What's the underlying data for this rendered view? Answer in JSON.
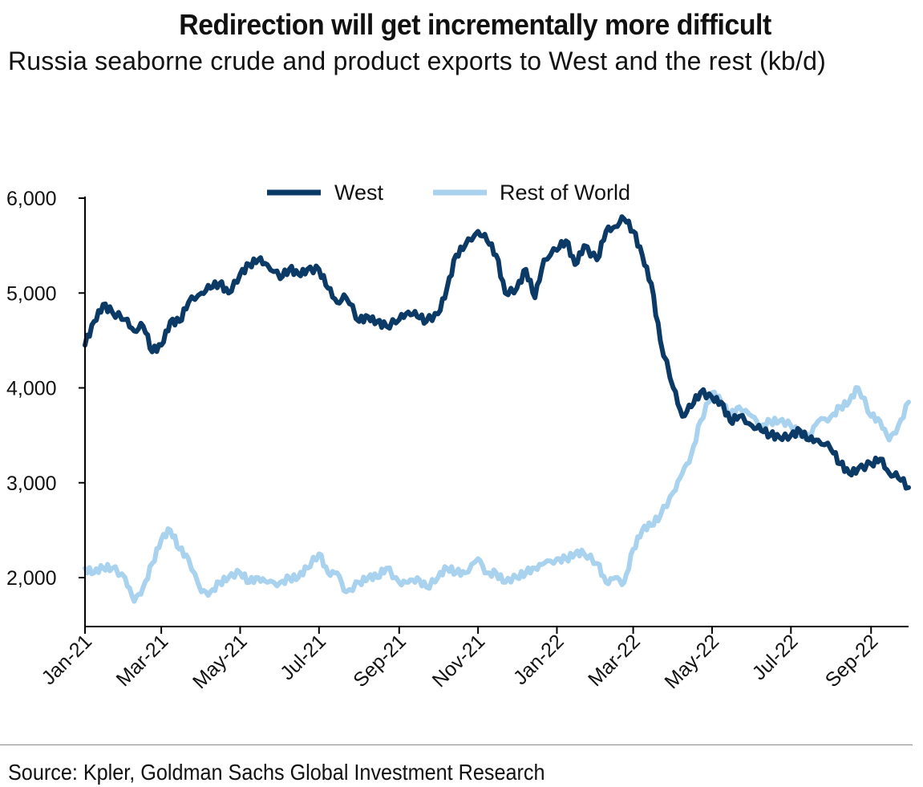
{
  "title": "Redirection will get incrementally more difficult",
  "subtitle": "Russia seaborne crude and product exports to West and the rest (kb/d)",
  "source": "Source: Kpler, Goldman Sachs Global Investment Research",
  "colors": {
    "west": "#0b3a66",
    "rest": "#a9d2ee",
    "axis": "#000000"
  },
  "chart_data": {
    "type": "line",
    "grid": false,
    "legend_position": "top",
    "ylim": [
      1500,
      6000
    ],
    "yticks": [
      2000,
      3000,
      4000,
      5000,
      6000
    ],
    "ytick_labels": [
      "2,000",
      "3,000",
      "4,000",
      "5,000",
      "6,000"
    ],
    "xlim": [
      "2021-01-01",
      "2022-09-30"
    ],
    "xticks": [
      "2021-01-01",
      "2021-03-01",
      "2021-05-01",
      "2021-07-01",
      "2021-09-01",
      "2021-11-01",
      "2022-01-01",
      "2022-03-01",
      "2022-05-01",
      "2022-07-01",
      "2022-09-01"
    ],
    "xtick_labels": [
      "Jan-21",
      "Mar-21",
      "May-21",
      "Jul-21",
      "Sep-21",
      "Nov-21",
      "Jan-22",
      "Mar-22",
      "May-22",
      "Jul-22",
      "Sep-22"
    ],
    "series": [
      {
        "name": "West",
        "points": [
          [
            "2021-01-01",
            4450
          ],
          [
            "2021-01-08",
            4700
          ],
          [
            "2021-01-15",
            4880
          ],
          [
            "2021-01-22",
            4800
          ],
          [
            "2021-02-01",
            4720
          ],
          [
            "2021-02-08",
            4600
          ],
          [
            "2021-02-15",
            4650
          ],
          [
            "2021-02-22",
            4380
          ],
          [
            "2021-03-01",
            4450
          ],
          [
            "2021-03-08",
            4700
          ],
          [
            "2021-03-15",
            4700
          ],
          [
            "2021-03-22",
            4900
          ],
          [
            "2021-04-01",
            5000
          ],
          [
            "2021-04-08",
            5050
          ],
          [
            "2021-04-15",
            5100
          ],
          [
            "2021-04-22",
            5000
          ],
          [
            "2021-05-01",
            5200
          ],
          [
            "2021-05-08",
            5300
          ],
          [
            "2021-05-15",
            5350
          ],
          [
            "2021-05-22",
            5300
          ],
          [
            "2021-06-01",
            5150
          ],
          [
            "2021-06-08",
            5250
          ],
          [
            "2021-06-15",
            5200
          ],
          [
            "2021-06-22",
            5250
          ],
          [
            "2021-07-01",
            5250
          ],
          [
            "2021-07-08",
            5050
          ],
          [
            "2021-07-15",
            4900
          ],
          [
            "2021-07-22",
            4950
          ],
          [
            "2021-08-01",
            4700
          ],
          [
            "2021-08-08",
            4750
          ],
          [
            "2021-08-15",
            4700
          ],
          [
            "2021-08-22",
            4650
          ],
          [
            "2021-09-01",
            4720
          ],
          [
            "2021-09-08",
            4800
          ],
          [
            "2021-09-15",
            4750
          ],
          [
            "2021-09-22",
            4700
          ],
          [
            "2021-10-01",
            4780
          ],
          [
            "2021-10-08",
            5050
          ],
          [
            "2021-10-15",
            5400
          ],
          [
            "2021-10-22",
            5500
          ],
          [
            "2021-11-01",
            5650
          ],
          [
            "2021-11-08",
            5550
          ],
          [
            "2021-11-15",
            5400
          ],
          [
            "2021-11-22",
            5000
          ],
          [
            "2021-12-01",
            5050
          ],
          [
            "2021-12-08",
            5250
          ],
          [
            "2021-12-15",
            4950
          ],
          [
            "2021-12-22",
            5350
          ],
          [
            "2022-01-01",
            5450
          ],
          [
            "2022-01-08",
            5550
          ],
          [
            "2022-01-15",
            5300
          ],
          [
            "2022-01-22",
            5500
          ],
          [
            "2022-02-01",
            5350
          ],
          [
            "2022-02-08",
            5650
          ],
          [
            "2022-02-15",
            5700
          ],
          [
            "2022-02-22",
            5780
          ],
          [
            "2022-03-01",
            5650
          ],
          [
            "2022-03-08",
            5400
          ],
          [
            "2022-03-15",
            5100
          ],
          [
            "2022-03-22",
            4500
          ],
          [
            "2022-04-01",
            4000
          ],
          [
            "2022-04-08",
            3700
          ],
          [
            "2022-04-15",
            3800
          ],
          [
            "2022-04-22",
            3950
          ],
          [
            "2022-05-01",
            3900
          ],
          [
            "2022-05-08",
            3850
          ],
          [
            "2022-05-15",
            3650
          ],
          [
            "2022-05-22",
            3700
          ],
          [
            "2022-06-01",
            3600
          ],
          [
            "2022-06-08",
            3550
          ],
          [
            "2022-06-15",
            3500
          ],
          [
            "2022-06-22",
            3480
          ],
          [
            "2022-07-01",
            3500
          ],
          [
            "2022-07-08",
            3550
          ],
          [
            "2022-07-15",
            3450
          ],
          [
            "2022-07-22",
            3450
          ],
          [
            "2022-08-01",
            3350
          ],
          [
            "2022-08-08",
            3200
          ],
          [
            "2022-08-15",
            3100
          ],
          [
            "2022-08-22",
            3150
          ],
          [
            "2022-09-01",
            3200
          ],
          [
            "2022-09-08",
            3250
          ],
          [
            "2022-09-15",
            3100
          ],
          [
            "2022-09-22",
            3050
          ],
          [
            "2022-09-30",
            2950
          ]
        ]
      },
      {
        "name": "Rest of World",
        "points": [
          [
            "2021-01-01",
            2100
          ],
          [
            "2021-01-08",
            2050
          ],
          [
            "2021-01-15",
            2100
          ],
          [
            "2021-01-22",
            2100
          ],
          [
            "2021-02-01",
            2000
          ],
          [
            "2021-02-08",
            1750
          ],
          [
            "2021-02-15",
            1900
          ],
          [
            "2021-02-22",
            2150
          ],
          [
            "2021-03-01",
            2400
          ],
          [
            "2021-03-08",
            2500
          ],
          [
            "2021-03-15",
            2300
          ],
          [
            "2021-03-22",
            2200
          ],
          [
            "2021-04-01",
            1850
          ],
          [
            "2021-04-08",
            1850
          ],
          [
            "2021-04-15",
            1950
          ],
          [
            "2021-04-22",
            2000
          ],
          [
            "2021-05-01",
            2050
          ],
          [
            "2021-05-08",
            1950
          ],
          [
            "2021-05-15",
            2000
          ],
          [
            "2021-05-22",
            1950
          ],
          [
            "2021-06-01",
            1950
          ],
          [
            "2021-06-08",
            2000
          ],
          [
            "2021-06-15",
            2000
          ],
          [
            "2021-06-22",
            2100
          ],
          [
            "2021-07-01",
            2250
          ],
          [
            "2021-07-08",
            2050
          ],
          [
            "2021-07-15",
            2050
          ],
          [
            "2021-07-22",
            1850
          ],
          [
            "2021-08-01",
            1950
          ],
          [
            "2021-08-08",
            2000
          ],
          [
            "2021-08-15",
            2000
          ],
          [
            "2021-08-22",
            2100
          ],
          [
            "2021-09-01",
            1950
          ],
          [
            "2021-09-08",
            1950
          ],
          [
            "2021-09-15",
            2000
          ],
          [
            "2021-09-22",
            1900
          ],
          [
            "2021-10-01",
            2000
          ],
          [
            "2021-10-08",
            2100
          ],
          [
            "2021-10-15",
            2050
          ],
          [
            "2021-10-22",
            2050
          ],
          [
            "2021-11-01",
            2200
          ],
          [
            "2021-11-08",
            2050
          ],
          [
            "2021-11-15",
            2050
          ],
          [
            "2021-11-22",
            1950
          ],
          [
            "2021-12-01",
            2000
          ],
          [
            "2021-12-08",
            2050
          ],
          [
            "2021-12-15",
            2100
          ],
          [
            "2021-12-22",
            2150
          ],
          [
            "2022-01-01",
            2200
          ],
          [
            "2022-01-08",
            2200
          ],
          [
            "2022-01-15",
            2250
          ],
          [
            "2022-01-22",
            2250
          ],
          [
            "2022-02-01",
            2150
          ],
          [
            "2022-02-08",
            1950
          ],
          [
            "2022-02-15",
            2000
          ],
          [
            "2022-02-22",
            1950
          ],
          [
            "2022-03-01",
            2300
          ],
          [
            "2022-03-08",
            2500
          ],
          [
            "2022-03-15",
            2550
          ],
          [
            "2022-03-22",
            2650
          ],
          [
            "2022-04-01",
            2900
          ],
          [
            "2022-04-08",
            3100
          ],
          [
            "2022-04-15",
            3300
          ],
          [
            "2022-04-22",
            3650
          ],
          [
            "2022-05-01",
            3950
          ],
          [
            "2022-05-08",
            3850
          ],
          [
            "2022-05-15",
            3700
          ],
          [
            "2022-05-22",
            3800
          ],
          [
            "2022-06-01",
            3700
          ],
          [
            "2022-06-08",
            3600
          ],
          [
            "2022-06-15",
            3650
          ],
          [
            "2022-06-22",
            3650
          ],
          [
            "2022-07-01",
            3600
          ],
          [
            "2022-07-08",
            3500
          ],
          [
            "2022-07-15",
            3500
          ],
          [
            "2022-07-22",
            3650
          ],
          [
            "2022-08-01",
            3700
          ],
          [
            "2022-08-08",
            3800
          ],
          [
            "2022-08-15",
            3850
          ],
          [
            "2022-08-22",
            4000
          ],
          [
            "2022-09-01",
            3700
          ],
          [
            "2022-09-08",
            3650
          ],
          [
            "2022-09-15",
            3450
          ],
          [
            "2022-09-22",
            3600
          ],
          [
            "2022-09-30",
            3850
          ]
        ]
      }
    ]
  }
}
